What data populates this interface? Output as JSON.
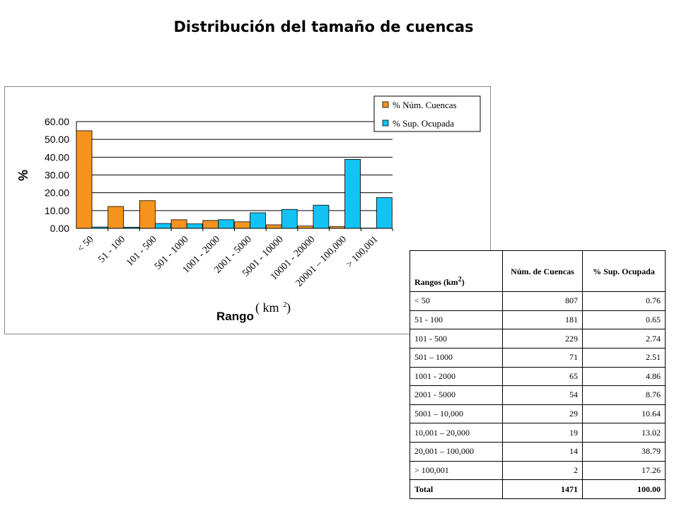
{
  "page": {
    "title": "Distribución del tamaño de cuencas"
  },
  "chart_data": {
    "type": "bar",
    "title": "",
    "ylabel": "%",
    "xlabel": "Rango",
    "xlabel_unit": "( km",
    "xlabel_unit_sup": "2",
    "xlabel_unit_close": " )",
    "ylim": [
      0,
      60
    ],
    "yticks": [
      "0.00",
      "10.00",
      "20.00",
      "30.00",
      "40.00",
      "50.00",
      "60.00"
    ],
    "grid": true,
    "legend_position": "top-right",
    "categories": [
      "< 50",
      "51 - 100",
      "101 - 500",
      "501 - 1000",
      "1001 - 2000",
      "2001 - 5000",
      "5001 - 10000",
      "10001 - 20000",
      "20001 – 100,000",
      "> 100,001"
    ],
    "series": [
      {
        "name": "% Núm. Cuencas",
        "color": "#F5931E",
        "values": [
          54.86,
          12.3,
          15.57,
          4.83,
          4.42,
          3.67,
          1.97,
          1.29,
          0.95,
          0.14
        ]
      },
      {
        "name": "% Sup. Ocupada",
        "color": "#12C3F4",
        "values": [
          0.76,
          0.65,
          2.74,
          2.51,
          4.86,
          8.76,
          10.64,
          13.02,
          38.79,
          17.26
        ]
      }
    ]
  },
  "table": {
    "header": {
      "col0": "Rangos (km",
      "col0_sup": "2",
      "col0_close": ")",
      "col1": "Núm. de Cuencas",
      "col2": "% Sup. Ocupada"
    },
    "rows": [
      {
        "rango": "< 50",
        "num": "807",
        "sup": "0.76"
      },
      {
        "rango": "51 - 100",
        "num": "181",
        "sup": "0.65"
      },
      {
        "rango": "101 - 500",
        "num": "229",
        "sup": "2.74"
      },
      {
        "rango": "501 – 1000",
        "num": "71",
        "sup": "2.51"
      },
      {
        "rango": "1001 - 2000",
        "num": "65",
        "sup": "4.86"
      },
      {
        "rango": "2001 - 5000",
        "num": "54",
        "sup": "8.76"
      },
      {
        "rango": "5001 – 10,000",
        "num": "29",
        "sup": "10.64"
      },
      {
        "rango": "10,001 – 20,000",
        "num": "19",
        "sup": "13.02"
      },
      {
        "rango": "20,001 – 100,000",
        "num": "14",
        "sup": "38.79"
      },
      {
        "rango": "> 100,001",
        "num": "2",
        "sup": "17.26"
      }
    ],
    "total": {
      "label": "Total",
      "num": "1471",
      "sup": "100.00"
    }
  }
}
